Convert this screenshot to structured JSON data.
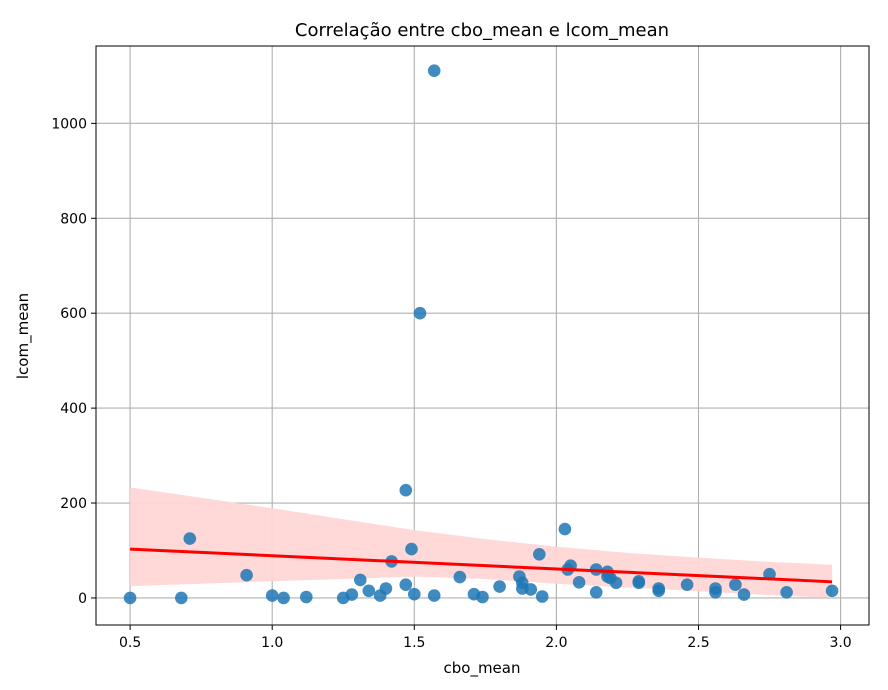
{
  "chart_data": {
    "type": "scatter",
    "title": "Correlação entre cbo_mean e lcom_mean",
    "xlabel": "cbo_mean",
    "ylabel": "lcom_mean",
    "xlim": [
      0.38,
      3.1
    ],
    "ylim": [
      -57,
      1163
    ],
    "xticks": [
      0.5,
      1.0,
      1.5,
      2.0,
      2.5,
      3.0
    ],
    "xtick_labels": [
      "0.5",
      "1.0",
      "1.5",
      "2.0",
      "2.5",
      "3.0"
    ],
    "yticks": [
      0,
      200,
      400,
      600,
      800,
      1000
    ],
    "ytick_labels": [
      "0",
      "200",
      "400",
      "600",
      "800",
      "1000"
    ],
    "grid": true,
    "colors": {
      "points": "#1f77b4",
      "regression_line": "#ff0000",
      "confidence_band": "#ffd6d6",
      "grid": "#b0b0b0"
    },
    "points": [
      {
        "x": 0.5,
        "y": 0
      },
      {
        "x": 0.68,
        "y": 0
      },
      {
        "x": 0.71,
        "y": 125
      },
      {
        "x": 0.91,
        "y": 48
      },
      {
        "x": 1.0,
        "y": 5
      },
      {
        "x": 1.04,
        "y": 0
      },
      {
        "x": 1.12,
        "y": 2
      },
      {
        "x": 1.25,
        "y": 0
      },
      {
        "x": 1.28,
        "y": 7
      },
      {
        "x": 1.31,
        "y": 38
      },
      {
        "x": 1.34,
        "y": 15
      },
      {
        "x": 1.38,
        "y": 5
      },
      {
        "x": 1.4,
        "y": 20
      },
      {
        "x": 1.42,
        "y": 77
      },
      {
        "x": 1.47,
        "y": 227
      },
      {
        "x": 1.47,
        "y": 28
      },
      {
        "x": 1.49,
        "y": 103
      },
      {
        "x": 1.5,
        "y": 8
      },
      {
        "x": 1.52,
        "y": 600
      },
      {
        "x": 1.57,
        "y": 1111
      },
      {
        "x": 1.57,
        "y": 5
      },
      {
        "x": 1.66,
        "y": 44
      },
      {
        "x": 1.71,
        "y": 8
      },
      {
        "x": 1.74,
        "y": 2
      },
      {
        "x": 1.8,
        "y": 24
      },
      {
        "x": 1.87,
        "y": 45
      },
      {
        "x": 1.88,
        "y": 32
      },
      {
        "x": 1.88,
        "y": 20
      },
      {
        "x": 1.91,
        "y": 18
      },
      {
        "x": 1.94,
        "y": 92
      },
      {
        "x": 1.95,
        "y": 3
      },
      {
        "x": 2.03,
        "y": 145
      },
      {
        "x": 2.04,
        "y": 60
      },
      {
        "x": 2.05,
        "y": 68
      },
      {
        "x": 2.08,
        "y": 33
      },
      {
        "x": 2.14,
        "y": 60
      },
      {
        "x": 2.14,
        "y": 12
      },
      {
        "x": 2.18,
        "y": 45
      },
      {
        "x": 2.18,
        "y": 55
      },
      {
        "x": 2.19,
        "y": 42
      },
      {
        "x": 2.21,
        "y": 32
      },
      {
        "x": 2.29,
        "y": 32
      },
      {
        "x": 2.29,
        "y": 35
      },
      {
        "x": 2.36,
        "y": 20
      },
      {
        "x": 2.36,
        "y": 15
      },
      {
        "x": 2.46,
        "y": 28
      },
      {
        "x": 2.56,
        "y": 20
      },
      {
        "x": 2.56,
        "y": 12
      },
      {
        "x": 2.63,
        "y": 28
      },
      {
        "x": 2.66,
        "y": 7
      },
      {
        "x": 2.75,
        "y": 50
      },
      {
        "x": 2.81,
        "y": 12
      },
      {
        "x": 2.97,
        "y": 15
      }
    ],
    "regression_line": {
      "x": [
        0.5,
        2.97
      ],
      "y": [
        103,
        34
      ]
    },
    "confidence_band": {
      "x": [
        0.5,
        0.75,
        1.0,
        1.25,
        1.5,
        1.75,
        2.0,
        2.25,
        2.5,
        2.75,
        2.97
      ],
      "upper": [
        233,
        211,
        189,
        166,
        143,
        124,
        108,
        95,
        85,
        76,
        70
      ],
      "lower": [
        25,
        30,
        35,
        40,
        45,
        40,
        30,
        22,
        14,
        6,
        0
      ]
    }
  }
}
